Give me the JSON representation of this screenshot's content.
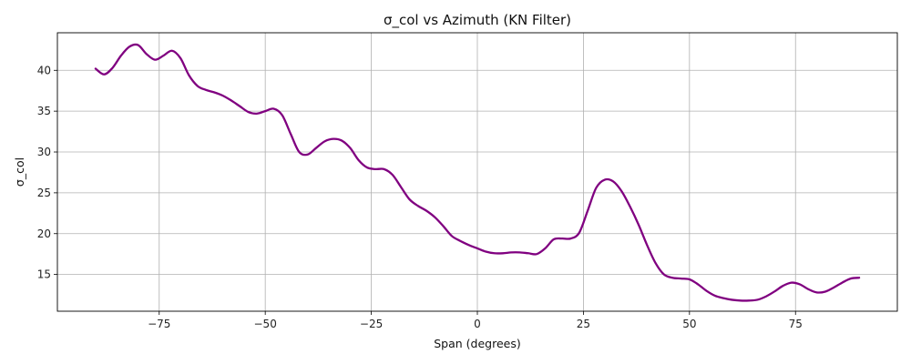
{
  "chart_data": {
    "type": "line",
    "title": "σ_col vs Azimuth (KN Filter)",
    "xlabel": "Span (degrees)",
    "ylabel": "σ_col",
    "xlim": [
      -99,
      99
    ],
    "ylim": [
      10.5,
      44.6
    ],
    "x_ticks": [
      -75,
      -50,
      -25,
      0,
      25,
      50,
      75
    ],
    "x_tick_labels": [
      "−75",
      "−50",
      "−25",
      "0",
      "25",
      "50",
      "75"
    ],
    "y_ticks": [
      15,
      20,
      25,
      30,
      35,
      40
    ],
    "y_tick_labels": [
      "15",
      "20",
      "25",
      "30",
      "35",
      "40"
    ],
    "grid": true,
    "line_color": "#800080",
    "series": [
      {
        "x": [
          -90,
          -88,
          -86,
          -84,
          -82,
          -80,
          -78,
          -76,
          -74,
          -72,
          -70,
          -68,
          -66,
          -64,
          -62,
          -60,
          -58,
          -56,
          -54,
          -52,
          -50,
          -48,
          -46,
          -44,
          -42,
          -40,
          -38,
          -36,
          -34,
          -32,
          -30,
          -28,
          -26,
          -24,
          -22,
          -20,
          -18,
          -16,
          -14,
          -12,
          -10,
          -8,
          -6,
          -4,
          -2,
          0,
          2,
          4,
          6,
          8,
          10,
          12,
          14,
          16,
          18,
          20,
          22,
          24,
          26,
          28,
          30,
          32,
          34,
          36,
          38,
          40,
          42,
          44,
          46,
          48,
          50,
          52,
          54,
          56,
          58,
          60,
          62,
          64,
          66,
          68,
          70,
          72,
          74,
          76,
          78,
          80,
          82,
          84,
          86,
          88,
          90
        ],
        "y": [
          40.2,
          39.5,
          40.3,
          41.8,
          42.9,
          43.1,
          42.0,
          41.3,
          41.8,
          42.4,
          41.5,
          39.4,
          38.1,
          37.6,
          37.3,
          36.9,
          36.3,
          35.6,
          34.9,
          34.7,
          35.0,
          35.3,
          34.5,
          32.2,
          30.0,
          29.7,
          30.5,
          31.3,
          31.6,
          31.4,
          30.5,
          29.0,
          28.1,
          27.9,
          27.9,
          27.2,
          25.7,
          24.2,
          23.4,
          22.8,
          22.0,
          20.9,
          19.7,
          19.1,
          18.6,
          18.2,
          17.8,
          17.6,
          17.6,
          17.7,
          17.7,
          17.6,
          17.5,
          18.2,
          19.3,
          19.4,
          19.4,
          20.1,
          22.8,
          25.6,
          26.6,
          26.4,
          25.2,
          23.3,
          21.1,
          18.6,
          16.4,
          15.0,
          14.6,
          14.5,
          14.4,
          13.8,
          13.0,
          12.4,
          12.1,
          11.9,
          11.8,
          11.8,
          11.9,
          12.3,
          12.9,
          13.6,
          14.0,
          13.8,
          13.2,
          12.8,
          12.9,
          13.4,
          14.0,
          14.5,
          14.6
        ]
      }
    ]
  }
}
